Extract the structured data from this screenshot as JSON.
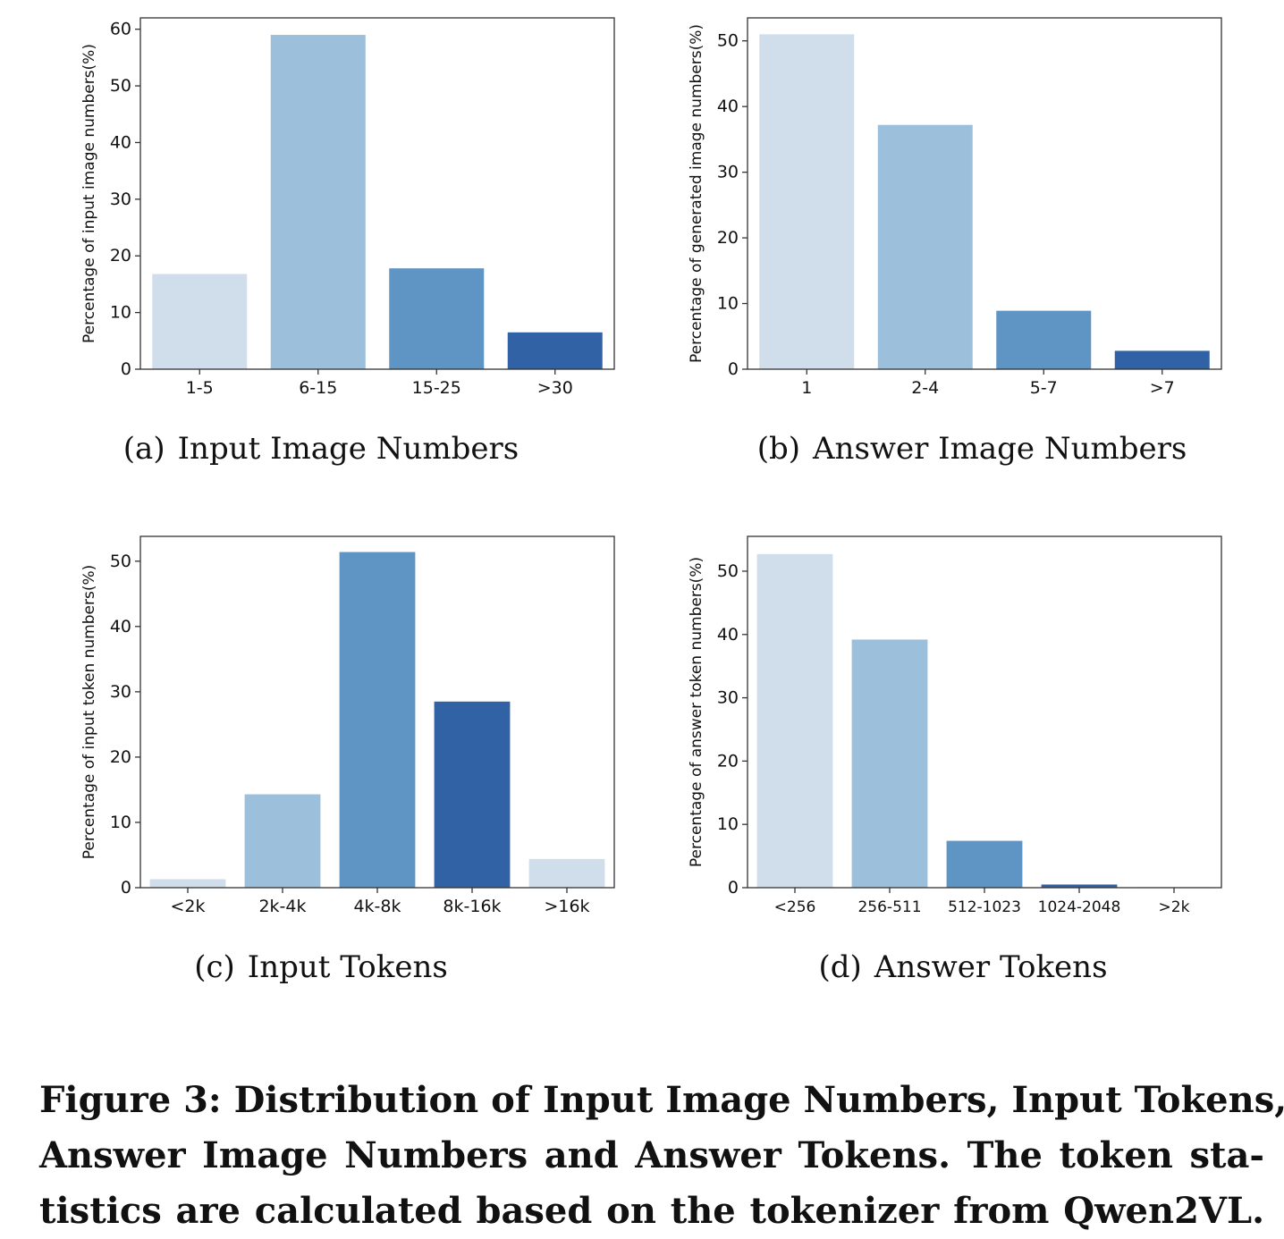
{
  "panels": [
    {
      "caption_tag": "(a)",
      "caption_text": "Input Image Numbers",
      "chart_data": {
        "type": "bar",
        "categories": [
          "1-5",
          "6-15",
          "15-25",
          ">30"
        ],
        "values": [
          16.8,
          59.0,
          17.8,
          6.5
        ],
        "ylabel": "Percentage of input image numbers(%)",
        "ylim": [
          0,
          62
        ],
        "yticks": [
          0,
          10,
          20,
          30,
          40,
          50,
          60
        ],
        "colors": [
          "#d0deec",
          "#9cbfdc",
          "#5f95c5",
          "#3262a6"
        ]
      }
    },
    {
      "caption_tag": "(b)",
      "caption_text": "Answer Image Numbers",
      "chart_data": {
        "type": "bar",
        "categories": [
          "1",
          "2-4",
          "5-7",
          ">7"
        ],
        "values": [
          51.0,
          37.2,
          8.9,
          2.8
        ],
        "ylabel": "Percentage of generated image numbers(%)",
        "ylim": [
          0,
          53.5
        ],
        "yticks": [
          0,
          10,
          20,
          30,
          40,
          50
        ],
        "colors": [
          "#d0deec",
          "#9cbfdc",
          "#5f95c5",
          "#3262a6"
        ]
      }
    },
    {
      "caption_tag": "(c)",
      "caption_text": "Input Tokens",
      "chart_data": {
        "type": "bar",
        "categories": [
          "<2k",
          "2k-4k",
          "4k-8k",
          "8k-16k",
          ">16k"
        ],
        "values": [
          1.3,
          14.3,
          51.4,
          28.5,
          4.4
        ],
        "ylabel": "Percentage of input token numbers(%)",
        "ylim": [
          0,
          53.8
        ],
        "yticks": [
          0,
          10,
          20,
          30,
          40,
          50
        ],
        "colors": [
          "#d0deec",
          "#9cbfdc",
          "#5f95c5",
          "#3262a6",
          "#d0deec"
        ]
      }
    },
    {
      "caption_tag": "(d)",
      "caption_text": "Answer Tokens",
      "chart_data": {
        "type": "bar",
        "categories": [
          "<256",
          "256-511",
          "512-1023",
          "1024-2048",
          ">2k"
        ],
        "values": [
          52.7,
          39.2,
          7.4,
          0.5,
          0.1
        ],
        "ylabel": "Percentage of answer token numbers(%)",
        "ylim": [
          0,
          55.5
        ],
        "yticks": [
          0,
          10,
          20,
          30,
          40,
          50
        ],
        "colors": [
          "#d0deec",
          "#9cbfdc",
          "#5f95c5",
          "#3262a6",
          "#d0deec"
        ]
      }
    }
  ],
  "figure_caption": {
    "line1": "Figure 3: Distribution of Input Image Numbers, Input Tokens,",
    "line2": "Answer Image Numbers and Answer Tokens. The token sta-",
    "line3": "tistics are calculated based on the tokenizer from Qwen2VL."
  }
}
